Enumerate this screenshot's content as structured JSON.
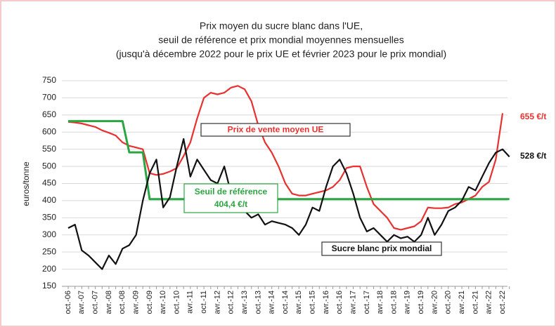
{
  "chart_data": {
    "type": "line",
    "title": [
      "Prix moyen du sucre blanc dans l'UE,",
      "seuil de référence et prix mondial moyennes mensuelles",
      "(jusqu'à décembre 2022 pour le prix UE et février 2023 pour le prix mondial)"
    ],
    "ylabel": "euros/tonne",
    "ylim": [
      150,
      750
    ],
    "yticks": [
      150,
      200,
      250,
      300,
      350,
      400,
      450,
      500,
      550,
      600,
      650,
      700,
      750
    ],
    "grid": true,
    "categories": [
      "oct.-06",
      null,
      "avr.-07",
      null,
      "oct.-07",
      null,
      "avr.-08",
      null,
      "oct.-08",
      null,
      "avr.-09",
      null,
      "oct.-09",
      null,
      "avr.-10",
      null,
      "oct.-10",
      null,
      "avr.-11",
      null,
      "oct.-11",
      null,
      "avr.-12",
      null,
      "oct.-12",
      null,
      "avr.-13",
      null,
      "oct.-13",
      null,
      "avr.-14",
      null,
      "oct.-14",
      null,
      "avr.-15",
      null,
      "oct.-15",
      null,
      "avr.-16",
      null,
      "oct.-16",
      null,
      "avr.-17",
      null,
      "oct.-17",
      null,
      "avr.-18",
      null,
      "oct.-18",
      null,
      "avr.-19",
      null,
      "oct.-19",
      null,
      "avr.-20",
      null,
      "oct.-20",
      null,
      "avr.-21",
      null,
      "oct.-21",
      null,
      "avr.-22",
      null,
      "oct.-22",
      null
    ],
    "series": [
      {
        "name": "Prix de vente moyen UE",
        "color": "#e8312f",
        "values": [
          630,
          628,
          625,
          620,
          615,
          605,
          598,
          590,
          570,
          560,
          555,
          550,
          480,
          475,
          478,
          485,
          495,
          530,
          570,
          640,
          700,
          715,
          710,
          715,
          730,
          735,
          725,
          690,
          620,
          570,
          540,
          500,
          450,
          420,
          415,
          415,
          420,
          425,
          430,
          440,
          460,
          495,
          500,
          500,
          440,
          390,
          370,
          350,
          320,
          315,
          320,
          325,
          340,
          380,
          378,
          378,
          380,
          390,
          395,
          405,
          415,
          440,
          455,
          520,
          655,
          null
        ]
      },
      {
        "name": "Seuil de référence",
        "color": "#2aa640",
        "values": [
          632,
          632,
          632,
          632,
          632,
          632,
          632,
          632,
          632,
          541,
          541,
          541,
          404.4,
          404.4,
          404.4,
          404.4,
          404.4,
          404.4,
          404.4,
          404.4,
          404.4,
          404.4,
          404.4,
          404.4,
          404.4,
          404.4,
          404.4,
          404.4,
          404.4,
          404.4,
          404.4,
          404.4,
          404.4,
          404.4,
          404.4,
          404.4,
          404.4,
          404.4,
          404.4,
          404.4,
          404.4,
          404.4,
          404.4,
          404.4,
          404.4,
          404.4,
          404.4,
          404.4,
          404.4,
          404.4,
          404.4,
          404.4,
          404.4,
          404.4,
          404.4,
          404.4,
          404.4,
          404.4,
          404.4,
          404.4,
          404.4,
          404.4,
          404.4,
          404.4,
          404.4,
          404.4
        ]
      },
      {
        "name": "Sucre blanc prix mondial",
        "color": "#111111",
        "values": [
          320,
          330,
          255,
          240,
          220,
          200,
          240,
          215,
          260,
          270,
          300,
          400,
          480,
          520,
          380,
          410,
          500,
          580,
          470,
          520,
          490,
          460,
          450,
          500,
          420,
          390,
          370,
          350,
          360,
          330,
          340,
          335,
          330,
          320,
          300,
          330,
          380,
          370,
          440,
          500,
          520,
          480,
          420,
          350,
          310,
          320,
          300,
          280,
          300,
          290,
          295,
          280,
          300,
          350,
          300,
          330,
          370,
          380,
          400,
          440,
          430,
          470,
          510,
          540,
          550,
          528
        ]
      }
    ],
    "annotations": [
      "404,4 €/t",
      "655 €/t",
      "528 €/t"
    ]
  }
}
